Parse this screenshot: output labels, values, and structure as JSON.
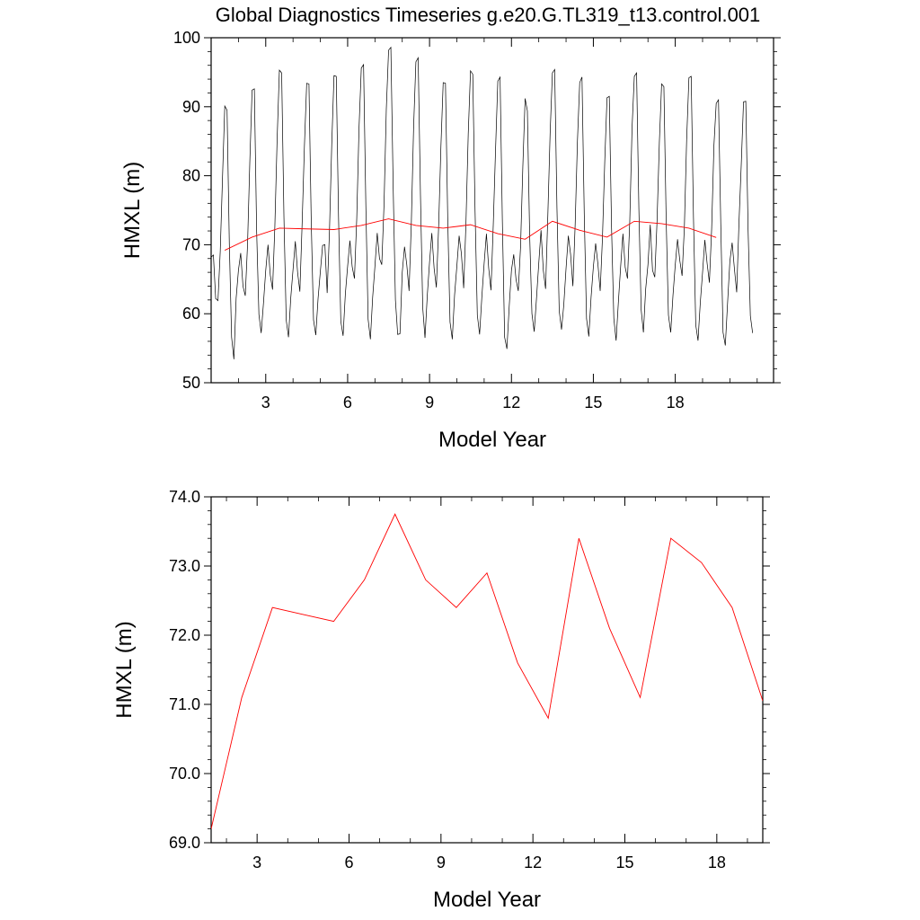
{
  "title": "Global Diagnostics Timeseries g.e20.G.TL319_t13.control.001",
  "colors": {
    "monthly": "#000000",
    "annual": "#ff0000"
  },
  "chart_data": [
    {
      "type": "line",
      "xlabel": "Model Year",
      "ylabel": "HMXL (m)",
      "xlim": [
        1,
        21.6
      ],
      "ylim": [
        50,
        100
      ],
      "x_ticks": [
        3,
        6,
        9,
        12,
        15,
        18
      ],
      "x_tick_labels": [
        "3",
        "6",
        "9",
        "12",
        "15",
        "18"
      ],
      "y_ticks": [
        50,
        60,
        70,
        80,
        90,
        100
      ],
      "y_tick_labels": [
        "50",
        "60",
        "70",
        "80",
        "90",
        "100"
      ],
      "grid": false,
      "series": [
        {
          "style": "monthly",
          "x_start": 1.0,
          "x_step": 0.0833333,
          "values": [
            68.2,
            68.5,
            62.2,
            61.9,
            69.0,
            79.7,
            90.1,
            89.5,
            70.1,
            56.6,
            53.4,
            62.3,
            66.3,
            68.8,
            64.0,
            62.6,
            70.0,
            82.0,
            92.4,
            92.6,
            72.0,
            59.9,
            57.2,
            61.5,
            66.3,
            70.0,
            65.6,
            63.5,
            72.6,
            85.2,
            95.3,
            94.9,
            74.0,
            59.1,
            56.6,
            62.3,
            66.4,
            70.5,
            66.0,
            63.2,
            73.1,
            84.3,
            93.4,
            93.3,
            73.4,
            59.1,
            56.9,
            62.2,
            66.1,
            69.9,
            70.0,
            63.0,
            71.8,
            84.4,
            94.5,
            94.4,
            74.0,
            58.9,
            56.8,
            62.9,
            66.9,
            70.6,
            66.8,
            65.1,
            73.8,
            86.9,
            95.6,
            96.1,
            75.7,
            59.2,
            56.3,
            62.4,
            66.9,
            71.7,
            68.0,
            67.1,
            75.9,
            89.7,
            98.2,
            98.6,
            78.6,
            62.0,
            57.0,
            57.1,
            66.0,
            69.7,
            67.1,
            63.3,
            73.3,
            87.1,
            96.5,
            97.1,
            77.3,
            60.9,
            56.5,
            62.6,
            67.5,
            71.7,
            66.6,
            63.8,
            72.7,
            84.3,
            93.5,
            93.4,
            73.6,
            58.8,
            56.3,
            62.7,
            66.9,
            71.3,
            68.7,
            63.7,
            73.1,
            86.0,
            95.2,
            94.7,
            75.0,
            59.8,
            57.0,
            62.5,
            67.3,
            71.6,
            66.6,
            63.4,
            72.8,
            83.7,
            93.7,
            94.3,
            73.5,
            56.6,
            54.9,
            61.0,
            66.3,
            68.6,
            65.0,
            63.3,
            69.7,
            81.3,
            91.2,
            89.4,
            71.4,
            60.0,
            57.4,
            62.2,
            67.3,
            72.1,
            66.3,
            63.6,
            74.4,
            86.2,
            94.9,
            95.4,
            75.3,
            60.4,
            57.7,
            61.3,
            66.6,
            71.3,
            68.6,
            64.0,
            72.9,
            85.0,
            93.5,
            94.3,
            74.4,
            59.3,
            56.7,
            62.4,
            66.8,
            70.2,
            67.2,
            63.3,
            71.0,
            82.0,
            91.3,
            91.5,
            72.4,
            59.3,
            56.1,
            61.7,
            66.9,
            71.6,
            66.7,
            65.1,
            73.3,
            86.9,
            94.4,
            94.9,
            75.3,
            60.6,
            57.3,
            63.6,
            67.1,
            72.9,
            66.3,
            65.3,
            73.5,
            84.8,
            93.3,
            92.9,
            73.7,
            59.8,
            57.3,
            62.7,
            67.1,
            70.8,
            67.7,
            65.5,
            72.5,
            85.2,
            94.2,
            94.4,
            74.0,
            58.4,
            56.1,
            61.6,
            66.0,
            70.7,
            67.3,
            64.5,
            72.4,
            84.4,
            90.5,
            91.0,
            73.0,
            57.3,
            55.4,
            61.6,
            67.6,
            70.3,
            66.5,
            63.1,
            73.2,
            81.6,
            90.7,
            90.8,
            72.3,
            59.7,
            57.2
          ]
        },
        {
          "style": "annual",
          "x": [
            1.5,
            2.5,
            3.5,
            4.5,
            5.5,
            6.5,
            7.5,
            8.5,
            9.5,
            10.5,
            11.5,
            12.5,
            13.5,
            14.5,
            15.5,
            16.5,
            17.5,
            18.5,
            19.5
          ],
          "values": [
            69.2,
            71.1,
            72.4,
            72.3,
            72.2,
            72.8,
            73.75,
            72.8,
            72.4,
            72.9,
            71.6,
            70.8,
            73.4,
            72.1,
            71.1,
            73.4,
            73.05,
            72.4,
            71.05
          ]
        }
      ]
    },
    {
      "type": "line",
      "xlabel": "Model Year",
      "ylabel": "HMXL (m)",
      "xlim": [
        1.5,
        19.5
      ],
      "ylim": [
        69.0,
        74.0
      ],
      "x_ticks": [
        3,
        6,
        9,
        12,
        15,
        18
      ],
      "x_tick_labels": [
        "3",
        "6",
        "9",
        "12",
        "15",
        "18"
      ],
      "y_ticks": [
        69,
        70,
        71,
        72,
        73,
        74
      ],
      "y_tick_labels": [
        "69.0",
        "70.0",
        "71.0",
        "72.0",
        "73.0",
        "74.0"
      ],
      "grid": false,
      "series": [
        {
          "style": "annual",
          "x": [
            1.5,
            2.5,
            3.5,
            4.5,
            5.5,
            6.5,
            7.5,
            8.5,
            9.5,
            10.5,
            11.5,
            12.5,
            13.5,
            14.5,
            15.5,
            16.5,
            17.5,
            18.5,
            19.5
          ],
          "values": [
            69.2,
            71.1,
            72.4,
            72.3,
            72.2,
            72.8,
            73.75,
            72.8,
            72.4,
            72.9,
            71.6,
            70.8,
            73.4,
            72.1,
            71.1,
            73.4,
            73.05,
            72.4,
            71.05
          ]
        }
      ]
    }
  ]
}
